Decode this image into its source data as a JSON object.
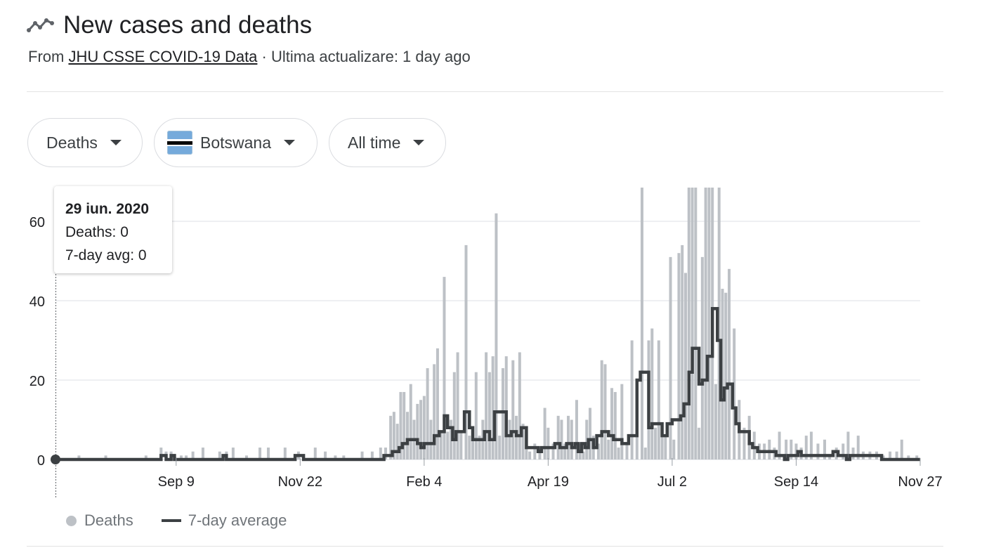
{
  "header": {
    "title": "New cases and deaths",
    "icon": "trending-line-icon",
    "source_prefix": "From",
    "source_link": "JHU CSSE COVID-19 Data",
    "update_text": "· Ultima actualizare: 1 day ago"
  },
  "filters": {
    "metric": "Deaths",
    "country": "Botswana",
    "country_flag": "botswana-flag-icon",
    "range": "All time"
  },
  "tooltip": {
    "date": "29 iun. 2020",
    "deaths_label": "Deaths: 0",
    "avg_label": "7-day avg: 0"
  },
  "legend": {
    "deaths": "Deaths",
    "average": "7-day average"
  },
  "colors": {
    "bar": "#bdc1c6",
    "line": "#3c4043",
    "grid": "#e8eaed",
    "text": "#202124"
  },
  "chart_data": {
    "type": "bar",
    "title": "New cases and deaths",
    "y_ticks": [
      0,
      20,
      40,
      60
    ],
    "ylim": [
      0,
      68
    ],
    "x_range": [
      "2020-06-29",
      "2021-11-27"
    ],
    "x_ticks": [
      {
        "date": "2020-09-09",
        "label": "Sep 9"
      },
      {
        "date": "2020-11-22",
        "label": "Nov 22"
      },
      {
        "date": "2021-02-04",
        "label": "Feb 4"
      },
      {
        "date": "2021-04-19",
        "label": "Apr 19"
      },
      {
        "date": "2021-07-02",
        "label": "Jul 2"
      },
      {
        "date": "2021-09-14",
        "label": "Sep 14"
      },
      {
        "date": "2021-11-27",
        "label": "Nov 27"
      }
    ],
    "series": [
      {
        "name": "Deaths",
        "type": "bar",
        "points": [
          [
            "2020-07-13",
            1
          ],
          [
            "2020-07-29",
            1
          ],
          [
            "2020-08-22",
            1
          ],
          [
            "2020-08-31",
            3
          ],
          [
            "2020-09-03",
            2
          ],
          [
            "2020-09-06",
            2
          ],
          [
            "2020-09-12",
            1
          ],
          [
            "2020-09-15",
            1
          ],
          [
            "2020-09-19",
            2
          ],
          [
            "2020-09-25",
            3
          ],
          [
            "2020-10-05",
            2
          ],
          [
            "2020-10-09",
            2
          ],
          [
            "2020-10-13",
            3
          ],
          [
            "2020-10-21",
            1
          ],
          [
            "2020-10-29",
            3
          ],
          [
            "2020-11-03",
            3
          ],
          [
            "2020-11-13",
            3
          ],
          [
            "2020-11-21",
            2
          ],
          [
            "2020-12-01",
            3
          ],
          [
            "2020-12-07",
            2
          ],
          [
            "2020-12-13",
            1
          ],
          [
            "2020-12-18",
            1
          ],
          [
            "2020-12-29",
            2
          ],
          [
            "2021-01-04",
            2
          ],
          [
            "2021-01-09",
            3
          ],
          [
            "2021-01-12",
            3
          ],
          [
            "2021-01-15",
            11
          ],
          [
            "2021-01-17",
            12
          ],
          [
            "2021-01-19",
            9
          ],
          [
            "2021-01-21",
            17
          ],
          [
            "2021-01-23",
            17
          ],
          [
            "2021-01-25",
            12
          ],
          [
            "2021-01-27",
            19
          ],
          [
            "2021-01-29",
            10
          ],
          [
            "2021-01-31",
            14
          ],
          [
            "2021-02-02",
            15
          ],
          [
            "2021-02-04",
            16
          ],
          [
            "2021-02-06",
            23
          ],
          [
            "2021-02-08",
            10
          ],
          [
            "2021-02-10",
            24
          ],
          [
            "2021-02-12",
            28
          ],
          [
            "2021-02-14",
            7
          ],
          [
            "2021-02-16",
            46
          ],
          [
            "2021-02-18",
            7
          ],
          [
            "2021-02-20",
            10
          ],
          [
            "2021-02-22",
            22
          ],
          [
            "2021-02-24",
            27
          ],
          [
            "2021-02-26",
            7
          ],
          [
            "2021-03-01",
            54
          ],
          [
            "2021-03-03",
            6
          ],
          [
            "2021-03-05",
            6
          ],
          [
            "2021-03-07",
            22
          ],
          [
            "2021-03-09",
            6
          ],
          [
            "2021-03-11",
            10
          ],
          [
            "2021-03-13",
            27
          ],
          [
            "2021-03-15",
            22
          ],
          [
            "2021-03-17",
            26
          ],
          [
            "2021-03-19",
            62
          ],
          [
            "2021-03-21",
            6
          ],
          [
            "2021-03-23",
            23
          ],
          [
            "2021-03-25",
            26
          ],
          [
            "2021-03-27",
            10
          ],
          [
            "2021-03-29",
            25
          ],
          [
            "2021-03-31",
            11
          ],
          [
            "2021-04-02",
            27
          ],
          [
            "2021-04-04",
            9
          ],
          [
            "2021-04-06",
            6
          ],
          [
            "2021-04-08",
            2
          ],
          [
            "2021-04-11",
            4
          ],
          [
            "2021-04-14",
            3
          ],
          [
            "2021-04-17",
            13
          ],
          [
            "2021-04-19",
            8
          ],
          [
            "2021-04-22",
            4
          ],
          [
            "2021-04-25",
            11
          ],
          [
            "2021-04-27",
            10
          ],
          [
            "2021-04-29",
            4
          ],
          [
            "2021-05-01",
            11
          ],
          [
            "2021-05-03",
            10
          ],
          [
            "2021-05-06",
            15
          ],
          [
            "2021-05-08",
            4
          ],
          [
            "2021-05-10",
            2
          ],
          [
            "2021-05-12",
            10
          ],
          [
            "2021-05-14",
            13
          ],
          [
            "2021-05-16",
            6
          ],
          [
            "2021-05-19",
            4
          ],
          [
            "2021-05-21",
            25
          ],
          [
            "2021-05-23",
            24
          ],
          [
            "2021-05-25",
            5
          ],
          [
            "2021-05-27",
            18
          ],
          [
            "2021-05-29",
            17
          ],
          [
            "2021-05-31",
            3
          ],
          [
            "2021-06-02",
            19
          ],
          [
            "2021-06-05",
            4
          ],
          [
            "2021-06-08",
            30
          ],
          [
            "2021-06-11",
            6
          ],
          [
            "2021-06-14",
            70
          ],
          [
            "2021-06-16",
            3
          ],
          [
            "2021-06-18",
            30
          ],
          [
            "2021-06-20",
            33
          ],
          [
            "2021-06-22",
            8
          ],
          [
            "2021-06-24",
            30
          ],
          [
            "2021-06-26",
            9
          ],
          [
            "2021-06-28",
            6
          ],
          [
            "2021-07-01",
            51
          ],
          [
            "2021-07-03",
            5
          ],
          [
            "2021-07-06",
            52
          ],
          [
            "2021-07-08",
            54
          ],
          [
            "2021-07-10",
            47
          ],
          [
            "2021-07-12",
            70
          ],
          [
            "2021-07-14",
            70
          ],
          [
            "2021-07-16",
            70
          ],
          [
            "2021-07-18",
            8
          ],
          [
            "2021-07-20",
            51
          ],
          [
            "2021-07-22",
            70
          ],
          [
            "2021-07-24",
            70
          ],
          [
            "2021-07-26",
            70
          ],
          [
            "2021-07-28",
            19
          ],
          [
            "2021-07-30",
            70
          ],
          [
            "2021-08-01",
            43
          ],
          [
            "2021-08-03",
            42
          ],
          [
            "2021-08-05",
            48
          ],
          [
            "2021-08-08",
            33
          ],
          [
            "2021-08-11",
            15
          ],
          [
            "2021-08-14",
            8
          ],
          [
            "2021-08-17",
            11
          ],
          [
            "2021-08-20",
            7
          ],
          [
            "2021-08-23",
            4
          ],
          [
            "2021-08-26",
            4
          ],
          [
            "2021-08-29",
            5
          ],
          [
            "2021-09-01",
            3
          ],
          [
            "2021-09-04",
            7
          ],
          [
            "2021-09-08",
            5
          ],
          [
            "2021-09-11",
            5
          ],
          [
            "2021-09-14",
            4
          ],
          [
            "2021-09-17",
            3
          ],
          [
            "2021-09-20",
            6
          ],
          [
            "2021-09-23",
            7
          ],
          [
            "2021-09-27",
            4
          ],
          [
            "2021-10-01",
            5
          ],
          [
            "2021-10-04",
            1
          ],
          [
            "2021-10-08",
            3
          ],
          [
            "2021-10-12",
            4
          ],
          [
            "2021-10-15",
            7
          ],
          [
            "2021-10-18",
            3
          ],
          [
            "2021-10-21",
            6
          ],
          [
            "2021-10-24",
            2
          ],
          [
            "2021-10-28",
            2
          ],
          [
            "2021-11-01",
            2
          ],
          [
            "2021-11-05",
            1
          ],
          [
            "2021-11-09",
            2
          ],
          [
            "2021-11-13",
            2
          ],
          [
            "2021-11-16",
            5
          ],
          [
            "2021-11-20",
            1
          ],
          [
            "2021-11-25",
            1
          ]
        ]
      },
      {
        "name": "7-day average",
        "type": "step-line",
        "points": [
          [
            "2020-06-29",
            0
          ],
          [
            "2020-08-30",
            0
          ],
          [
            "2020-08-31",
            1
          ],
          [
            "2020-09-03",
            0
          ],
          [
            "2020-09-06",
            1
          ],
          [
            "2020-09-08",
            0
          ],
          [
            "2020-10-06",
            0
          ],
          [
            "2020-10-07",
            1
          ],
          [
            "2020-10-09",
            0
          ],
          [
            "2020-11-18",
            0
          ],
          [
            "2020-11-19",
            1
          ],
          [
            "2020-11-24",
            0
          ],
          [
            "2021-01-10",
            0
          ],
          [
            "2021-01-11",
            1
          ],
          [
            "2021-01-16",
            2
          ],
          [
            "2021-01-20",
            3
          ],
          [
            "2021-01-22",
            4
          ],
          [
            "2021-01-25",
            5
          ],
          [
            "2021-01-31",
            4
          ],
          [
            "2021-02-02",
            3
          ],
          [
            "2021-02-04",
            4
          ],
          [
            "2021-02-10",
            6
          ],
          [
            "2021-02-13",
            7
          ],
          [
            "2021-02-16",
            11
          ],
          [
            "2021-02-18",
            8
          ],
          [
            "2021-02-21",
            5
          ],
          [
            "2021-02-23",
            7
          ],
          [
            "2021-02-28",
            12
          ],
          [
            "2021-03-03",
            8
          ],
          [
            "2021-03-05",
            5
          ],
          [
            "2021-03-12",
            7
          ],
          [
            "2021-03-15",
            5
          ],
          [
            "2021-03-18",
            12
          ],
          [
            "2021-03-25",
            6
          ],
          [
            "2021-03-28",
            7
          ],
          [
            "2021-03-31",
            6
          ],
          [
            "2021-04-03",
            8
          ],
          [
            "2021-04-06",
            3
          ],
          [
            "2021-04-13",
            2
          ],
          [
            "2021-04-15",
            3
          ],
          [
            "2021-04-23",
            4
          ],
          [
            "2021-04-26",
            3
          ],
          [
            "2021-04-30",
            4
          ],
          [
            "2021-05-03",
            3
          ],
          [
            "2021-05-05",
            4
          ],
          [
            "2021-05-07",
            2
          ],
          [
            "2021-05-09",
            4
          ],
          [
            "2021-05-11",
            3
          ],
          [
            "2021-05-13",
            5
          ],
          [
            "2021-05-16",
            3
          ],
          [
            "2021-05-18",
            6
          ],
          [
            "2021-05-21",
            7
          ],
          [
            "2021-05-25",
            6
          ],
          [
            "2021-05-28",
            5
          ],
          [
            "2021-06-02",
            4
          ],
          [
            "2021-06-06",
            6
          ],
          [
            "2021-06-11",
            20
          ],
          [
            "2021-06-13",
            22
          ],
          [
            "2021-06-18",
            8
          ],
          [
            "2021-06-20",
            9
          ],
          [
            "2021-06-26",
            6
          ],
          [
            "2021-06-29",
            9
          ],
          [
            "2021-07-02",
            10
          ],
          [
            "2021-07-07",
            11
          ],
          [
            "2021-07-09",
            14
          ],
          [
            "2021-07-12",
            22
          ],
          [
            "2021-07-14",
            28
          ],
          [
            "2021-07-18",
            19
          ],
          [
            "2021-07-20",
            20
          ],
          [
            "2021-07-23",
            26
          ],
          [
            "2021-07-26",
            38
          ],
          [
            "2021-07-29",
            30
          ],
          [
            "2021-07-31",
            15
          ],
          [
            "2021-08-02",
            18
          ],
          [
            "2021-08-04",
            19
          ],
          [
            "2021-08-07",
            13
          ],
          [
            "2021-08-09",
            9
          ],
          [
            "2021-08-11",
            7
          ],
          [
            "2021-08-17",
            4
          ],
          [
            "2021-08-19",
            3
          ],
          [
            "2021-08-22",
            2
          ],
          [
            "2021-09-02",
            1
          ],
          [
            "2021-09-07",
            0
          ],
          [
            "2021-09-09",
            1
          ],
          [
            "2021-09-15",
            2
          ],
          [
            "2021-09-17",
            1
          ],
          [
            "2021-10-06",
            2
          ],
          [
            "2021-10-09",
            1
          ],
          [
            "2021-10-14",
            0
          ],
          [
            "2021-10-16",
            1
          ],
          [
            "2021-11-04",
            0
          ],
          [
            "2021-11-08",
            0
          ],
          [
            "2021-11-27",
            0
          ]
        ]
      }
    ]
  }
}
